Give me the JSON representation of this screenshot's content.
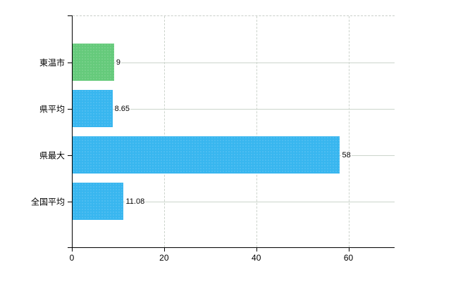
{
  "chart_data": {
    "type": "bar",
    "orientation": "horizontal",
    "title": "",
    "xlabel": "",
    "ylabel": "",
    "categories": [
      "東温市",
      "県平均",
      "県最大",
      "全国平均"
    ],
    "values": [
      9,
      8.65,
      58,
      11.08
    ],
    "value_labels": [
      "9",
      "8.65",
      "58",
      "11.08"
    ],
    "bar_colors": [
      "#65ca7b",
      "#38b6ef",
      "#38b6ef",
      "#38b6ef"
    ],
    "xlim": [
      0,
      70
    ],
    "x_ticks": [
      0,
      20,
      40,
      60
    ],
    "x_tick_labels": [
      "0",
      "20",
      "40",
      "60"
    ],
    "grid": {
      "vertical_gridlines": "dashed",
      "horizontal_category_lines": "solid",
      "plot_top_border": "dashed"
    },
    "legend": {
      "visible": false
    },
    "colors": {
      "axis": "#000000",
      "gridline": "#ccd5cc",
      "text": "#000000",
      "green_bar": "#65ca7b",
      "blue_bar": "#38b6ef",
      "value_label_background": "#ffffff"
    }
  }
}
